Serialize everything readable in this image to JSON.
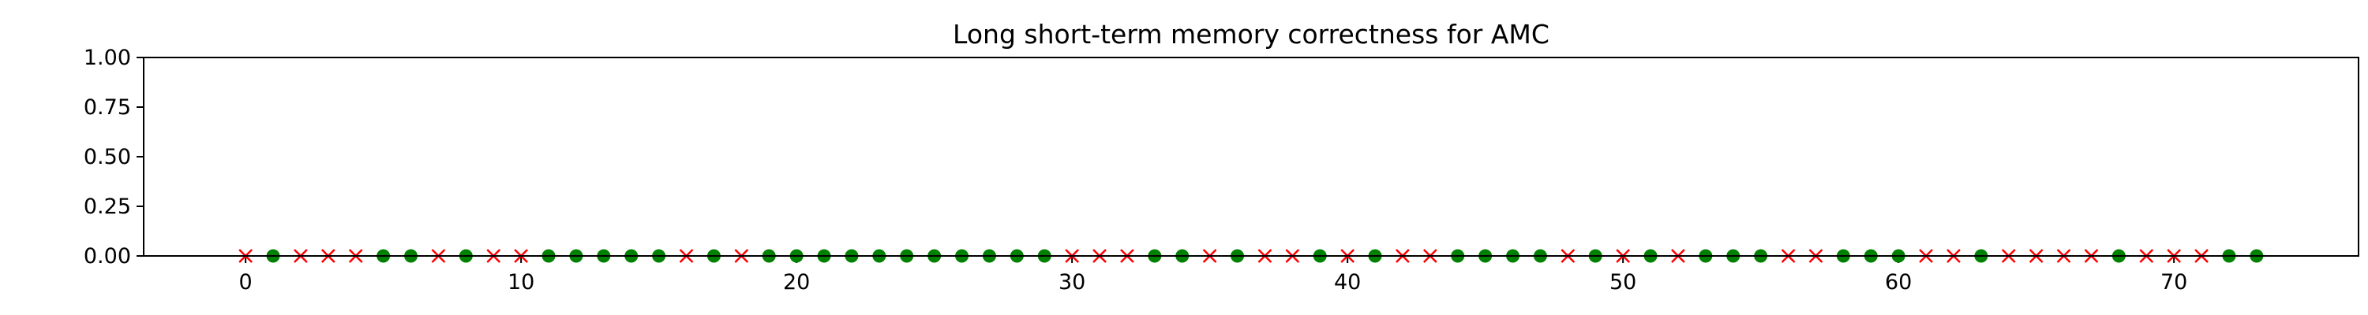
{
  "chart_data": {
    "type": "scatter",
    "title": "Long short-term memory correctness for AMC",
    "xlabel": "",
    "ylabel": "",
    "xlim": [
      -3.7,
      76.7
    ],
    "ylim": [
      0,
      1
    ],
    "x_ticks": [
      0,
      10,
      20,
      30,
      40,
      50,
      60,
      70
    ],
    "y_ticks": [
      0.0,
      0.25,
      0.5,
      0.75,
      1.0
    ],
    "x_tick_labels": [
      "0",
      "10",
      "20",
      "30",
      "40",
      "50",
      "60",
      "70"
    ],
    "y_tick_labels": [
      "0.00",
      "0.25",
      "0.50",
      "0.75",
      "1.00"
    ],
    "grid": false,
    "legend": "none",
    "colors": {
      "correct": "#008000",
      "incorrect": "#ff0000"
    },
    "series": [
      {
        "marker": "circle",
        "color": "#008000",
        "x": [
          1,
          5,
          6,
          8,
          11,
          12,
          13,
          14,
          15,
          17,
          19,
          20,
          21,
          22,
          23,
          24,
          25,
          26,
          27,
          28,
          29,
          33,
          34,
          36,
          39,
          41,
          44,
          45,
          46,
          47,
          49,
          51,
          53,
          54,
          55,
          58,
          59,
          60,
          63,
          68,
          72,
          73
        ],
        "y": [
          0,
          0,
          0,
          0,
          0,
          0,
          0,
          0,
          0,
          0,
          0,
          0,
          0,
          0,
          0,
          0,
          0,
          0,
          0,
          0,
          0,
          0,
          0,
          0,
          0,
          0,
          0,
          0,
          0,
          0,
          0,
          0,
          0,
          0,
          0,
          0,
          0,
          0,
          0,
          0,
          0,
          0
        ]
      },
      {
        "marker": "x",
        "color": "#ff0000",
        "x": [
          0,
          2,
          3,
          4,
          7,
          9,
          10,
          16,
          18,
          30,
          31,
          32,
          35,
          37,
          38,
          40,
          42,
          43,
          48,
          50,
          52,
          56,
          57,
          61,
          62,
          64,
          65,
          66,
          67,
          69,
          70,
          71
        ],
        "y": [
          0,
          0,
          0,
          0,
          0,
          0,
          0,
          0,
          0,
          0,
          0,
          0,
          0,
          0,
          0,
          0,
          0,
          0,
          0,
          0,
          0,
          0,
          0,
          0,
          0,
          0,
          0,
          0,
          0,
          0,
          0,
          0
        ]
      }
    ]
  }
}
